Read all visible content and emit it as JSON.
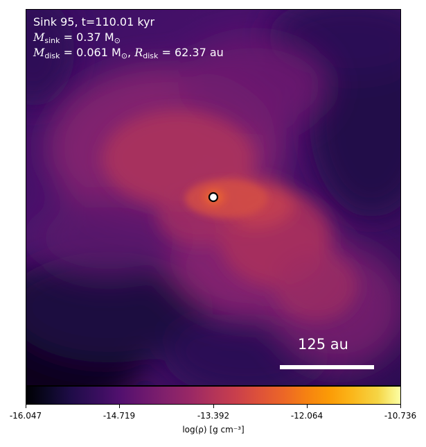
{
  "annotations": {
    "sink_line": "Sink 95, t=110.01 kyr",
    "msink": {
      "symbol": "M",
      "subscript": "sink",
      "value_text": " = 0.37 M",
      "solar_symbol": "⊙"
    },
    "mdisk": {
      "symbol": "M",
      "subscript": "disk",
      "value_text": " = 0.061 M",
      "solar_symbol": "⊙",
      "separator": ", ",
      "r_symbol": "R",
      "r_subscript": "disk",
      "r_value_text": " = 62.37 au"
    }
  },
  "scale_bar": {
    "label": "125 au"
  },
  "colorbar": {
    "label": "log(ρ) [g cm⁻³]",
    "ticks": [
      "-16.047",
      "-14.719",
      "-13.392",
      "-12.064",
      "-10.736"
    ],
    "colormap": "inferno"
  },
  "sink_marker": {
    "icon": "sink-particle-icon",
    "ring_color": "#ffffff",
    "core_color": "#000000"
  }
}
